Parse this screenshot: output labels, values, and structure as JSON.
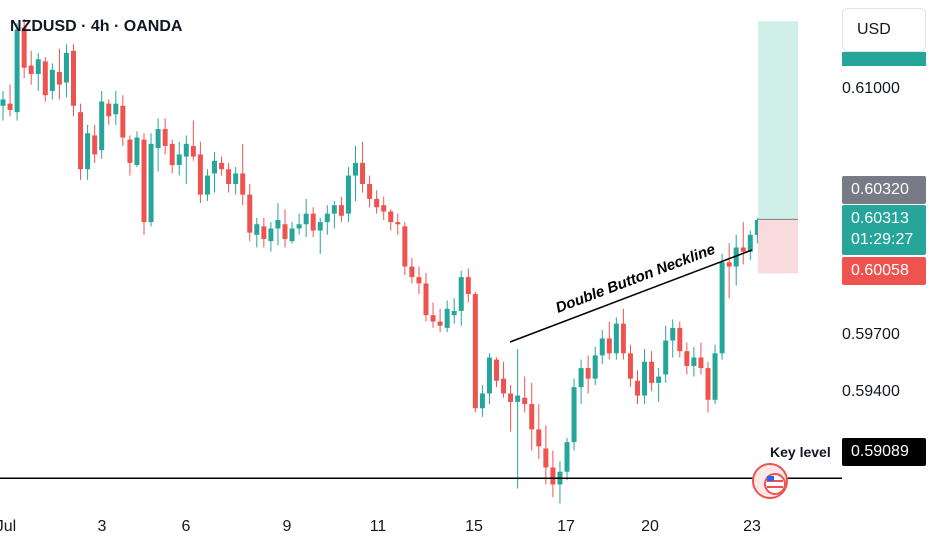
{
  "header": {
    "title": "NZDUSD · 4h · OANDA",
    "currency_button": "USD"
  },
  "price_axis": {
    "labels": [
      "0.61000",
      "0.59700",
      "0.59400"
    ]
  },
  "badges": {
    "target": "0.60320",
    "current_price": "0.60313",
    "countdown": "01:29:27",
    "stop": "0.60058",
    "key_level": "0.59089"
  },
  "annotations": {
    "neckline": "Double Button Neckline",
    "key_level": "Key level"
  },
  "time_axis": {
    "labels": [
      "Jul",
      "3",
      "6",
      "9",
      "11",
      "15",
      "17",
      "20",
      "23"
    ]
  },
  "colors": {
    "up": "#26a69a",
    "down": "#ef5350",
    "target_zone": "#d1efe9",
    "stop_zone": "#fadbdd",
    "key_badge": "#000000",
    "target_badge": "#787b86"
  },
  "chart_data": {
    "type": "candlestick",
    "symbol": "NZDUSD",
    "timeframe": "4h",
    "x_ticks": [
      "Jul",
      "3",
      "6",
      "9",
      "11",
      "15",
      "17",
      "20",
      "23"
    ],
    "y_ticks": [
      0.61,
      0.597,
      0.594
    ],
    "ylim": [
      0.5875,
      0.6135
    ],
    "key_level": 0.59089,
    "target": 0.6032,
    "stop": 0.60058,
    "last_price": 0.60313,
    "candles": [
      [
        0.6085,
        0.6092,
        0.6078,
        0.6088
      ],
      [
        0.6086,
        0.6095,
        0.608,
        0.6083
      ],
      [
        0.6082,
        0.6124,
        0.6078,
        0.6121
      ],
      [
        0.6122,
        0.6126,
        0.6098,
        0.6103
      ],
      [
        0.6104,
        0.6111,
        0.6095,
        0.61
      ],
      [
        0.61,
        0.611,
        0.6092,
        0.6107
      ],
      [
        0.6106,
        0.6108,
        0.6087,
        0.609
      ],
      [
        0.6092,
        0.6105,
        0.6088,
        0.6102
      ],
      [
        0.6101,
        0.6112,
        0.6088,
        0.6095
      ],
      [
        0.6096,
        0.6114,
        0.6089,
        0.611
      ],
      [
        0.6111,
        0.6114,
        0.608,
        0.6085
      ],
      [
        0.6082,
        0.6086,
        0.605,
        0.6055
      ],
      [
        0.6055,
        0.6076,
        0.605,
        0.6072
      ],
      [
        0.6071,
        0.6076,
        0.6058,
        0.6062
      ],
      [
        0.6064,
        0.6092,
        0.606,
        0.6087
      ],
      [
        0.6086,
        0.6088,
        0.6076,
        0.608
      ],
      [
        0.6081,
        0.6092,
        0.6076,
        0.6086
      ],
      [
        0.6085,
        0.609,
        0.6066,
        0.607
      ],
      [
        0.6069,
        0.6071,
        0.6052,
        0.6058
      ],
      [
        0.6057,
        0.6073,
        0.6056,
        0.607
      ],
      [
        0.6069,
        0.6072,
        0.6024,
        0.603
      ],
      [
        0.603,
        0.6072,
        0.6028,
        0.6067
      ],
      [
        0.6065,
        0.6079,
        0.6054,
        0.6074
      ],
      [
        0.6074,
        0.6079,
        0.6062,
        0.6066
      ],
      [
        0.6067,
        0.6069,
        0.6053,
        0.6057
      ],
      [
        0.6057,
        0.6068,
        0.6052,
        0.6062
      ],
      [
        0.6061,
        0.6071,
        0.6048,
        0.6067
      ],
      [
        0.6066,
        0.6078,
        0.6059,
        0.6061
      ],
      [
        0.6062,
        0.6068,
        0.6039,
        0.6043
      ],
      [
        0.6043,
        0.6055,
        0.604,
        0.6052
      ],
      [
        0.6053,
        0.6063,
        0.6044,
        0.6059
      ],
      [
        0.6058,
        0.6061,
        0.6052,
        0.6055
      ],
      [
        0.6055,
        0.6058,
        0.6044,
        0.6048
      ],
      [
        0.6048,
        0.6056,
        0.6043,
        0.6053
      ],
      [
        0.6053,
        0.6067,
        0.6038,
        0.6043
      ],
      [
        0.6043,
        0.6048,
        0.6021,
        0.6025
      ],
      [
        0.6024,
        0.6032,
        0.6018,
        0.6029
      ],
      [
        0.6028,
        0.6032,
        0.6018,
        0.6022
      ],
      [
        0.6021,
        0.603,
        0.6016,
        0.6027
      ],
      [
        0.6027,
        0.6039,
        0.6019,
        0.6031
      ],
      [
        0.6029,
        0.6036,
        0.6018,
        0.6022
      ],
      [
        0.6021,
        0.603,
        0.602,
        0.6027
      ],
      [
        0.6027,
        0.6034,
        0.6024,
        0.6029
      ],
      [
        0.6029,
        0.6041,
        0.6023,
        0.6034
      ],
      [
        0.6034,
        0.6037,
        0.6023,
        0.6026
      ],
      [
        0.6026,
        0.6032,
        0.6015,
        0.603
      ],
      [
        0.603,
        0.6038,
        0.6024,
        0.6034
      ],
      [
        0.6034,
        0.604,
        0.6027,
        0.6038
      ],
      [
        0.6038,
        0.6042,
        0.603,
        0.6033
      ],
      [
        0.6034,
        0.6056,
        0.603,
        0.6052
      ],
      [
        0.6052,
        0.6066,
        0.604,
        0.6058
      ],
      [
        0.6058,
        0.6068,
        0.6044,
        0.6048
      ],
      [
        0.6048,
        0.6052,
        0.6037,
        0.6041
      ],
      [
        0.6041,
        0.6045,
        0.6034,
        0.6037
      ],
      [
        0.6038,
        0.6042,
        0.6031,
        0.6035
      ],
      [
        0.6035,
        0.6036,
        0.6026,
        0.603
      ],
      [
        0.603,
        0.6034,
        0.6024,
        0.6029
      ],
      [
        0.6028,
        0.603,
        0.6005,
        0.6009
      ],
      [
        0.6009,
        0.6013,
        0.6001,
        0.6004
      ],
      [
        0.6004,
        0.6009,
        0.5996,
        0.6001
      ],
      [
        0.6001,
        0.6006,
        0.5983,
        0.5986
      ],
      [
        0.5986,
        0.5992,
        0.598,
        0.5983
      ],
      [
        0.5983,
        0.5989,
        0.5978,
        0.5981
      ],
      [
        0.598,
        0.5993,
        0.5978,
        0.5989
      ],
      [
        0.5986,
        0.5994,
        0.5982,
        0.5988
      ],
      [
        0.5988,
        0.6007,
        0.5981,
        0.6004
      ],
      [
        0.6004,
        0.6008,
        0.5992,
        0.5996
      ],
      [
        0.5996,
        0.5997,
        0.594,
        0.5942
      ],
      [
        0.5942,
        0.5953,
        0.5938,
        0.5949
      ],
      [
        0.5949,
        0.5968,
        0.5944,
        0.5966
      ],
      [
        0.5965,
        0.5966,
        0.5952,
        0.5955
      ],
      [
        0.5956,
        0.5964,
        0.5947,
        0.5949
      ],
      [
        0.5949,
        0.5953,
        0.5931,
        0.5945
      ],
      [
        0.5945,
        0.597,
        0.5904,
        0.5948
      ],
      [
        0.5947,
        0.5957,
        0.594,
        0.5944
      ],
      [
        0.5944,
        0.5954,
        0.5922,
        0.5932
      ],
      [
        0.5932,
        0.5944,
        0.5918,
        0.5924
      ],
      [
        0.5923,
        0.5934,
        0.5906,
        0.5914
      ],
      [
        0.5914,
        0.5922,
        0.59,
        0.5906
      ],
      [
        0.5906,
        0.5917,
        0.5897,
        0.5912
      ],
      [
        0.5912,
        0.5928,
        0.5908,
        0.5926
      ],
      [
        0.5926,
        0.5956,
        0.5922,
        0.5952
      ],
      [
        0.5952,
        0.5965,
        0.5944,
        0.5961
      ],
      [
        0.5961,
        0.5967,
        0.5949,
        0.5956
      ],
      [
        0.5956,
        0.5971,
        0.5953,
        0.5967
      ],
      [
        0.5967,
        0.5979,
        0.5963,
        0.5975
      ],
      [
        0.5975,
        0.5983,
        0.5965,
        0.5968
      ],
      [
        0.5968,
        0.5985,
        0.5965,
        0.5982
      ],
      [
        0.5982,
        0.5989,
        0.5965,
        0.5968
      ],
      [
        0.5968,
        0.5972,
        0.5952,
        0.5956
      ],
      [
        0.5955,
        0.596,
        0.5944,
        0.5948
      ],
      [
        0.5948,
        0.597,
        0.5944,
        0.5964
      ],
      [
        0.5964,
        0.5969,
        0.595,
        0.5954
      ],
      [
        0.5954,
        0.5961,
        0.5945,
        0.5957
      ],
      [
        0.5958,
        0.5981,
        0.5954,
        0.5974
      ],
      [
        0.5974,
        0.5984,
        0.5966,
        0.598
      ],
      [
        0.598,
        0.5983,
        0.5966,
        0.5969
      ],
      [
        0.5969,
        0.5973,
        0.5958,
        0.5962
      ],
      [
        0.5962,
        0.5971,
        0.5957,
        0.5966
      ],
      [
        0.5966,
        0.5973,
        0.5958,
        0.5961
      ],
      [
        0.5961,
        0.5964,
        0.594,
        0.5946
      ],
      [
        0.5946,
        0.5972,
        0.5944,
        0.5968
      ],
      [
        0.5968,
        0.6015,
        0.5965,
        0.6011
      ],
      [
        0.6011,
        0.602,
        0.5994,
        0.6009
      ],
      [
        0.6009,
        0.6024,
        0.6,
        0.6018
      ],
      [
        0.6018,
        0.603,
        0.601,
        0.6016
      ],
      [
        0.6016,
        0.6026,
        0.6012,
        0.6024
      ],
      [
        0.6024,
        0.6032,
        0.602,
        0.6031
      ]
    ]
  }
}
